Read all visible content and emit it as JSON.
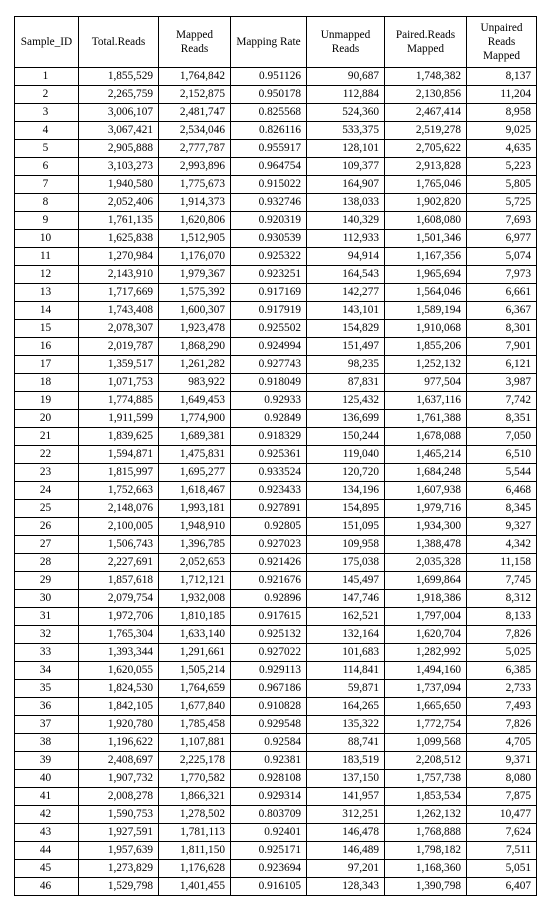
{
  "table": {
    "columns": [
      "Sample_ID",
      "Total.Reads",
      "Mapped Reads",
      "Mapping Rate",
      "Unmapped Reads",
      "Paired.Reads Mapped",
      "Unpaired Reads Mapped"
    ],
    "rows": [
      [
        "1",
        "1,855,529",
        "1,764,842",
        "0.951126",
        "90,687",
        "1,748,382",
        "8,137"
      ],
      [
        "2",
        "2,265,759",
        "2,152,875",
        "0.950178",
        "112,884",
        "2,130,856",
        "11,204"
      ],
      [
        "3",
        "3,006,107",
        "2,481,747",
        "0.825568",
        "524,360",
        "2,467,414",
        "8,958"
      ],
      [
        "4",
        "3,067,421",
        "2,534,046",
        "0.826116",
        "533,375",
        "2,519,278",
        "9,025"
      ],
      [
        "5",
        "2,905,888",
        "2,777,787",
        "0.955917",
        "128,101",
        "2,705,622",
        "4,635"
      ],
      [
        "6",
        "3,103,273",
        "2,993,896",
        "0.964754",
        "109,377",
        "2,913,828",
        "5,223"
      ],
      [
        "7",
        "1,940,580",
        "1,775,673",
        "0.915022",
        "164,907",
        "1,765,046",
        "5,805"
      ],
      [
        "8",
        "2,052,406",
        "1,914,373",
        "0.932746",
        "138,033",
        "1,902,820",
        "5,725"
      ],
      [
        "9",
        "1,761,135",
        "1,620,806",
        "0.920319",
        "140,329",
        "1,608,080",
        "7,693"
      ],
      [
        "10",
        "1,625,838",
        "1,512,905",
        "0.930539",
        "112,933",
        "1,501,346",
        "6,977"
      ],
      [
        "11",
        "1,270,984",
        "1,176,070",
        "0.925322",
        "94,914",
        "1,167,356",
        "5,074"
      ],
      [
        "12",
        "2,143,910",
        "1,979,367",
        "0.923251",
        "164,543",
        "1,965,694",
        "7,973"
      ],
      [
        "13",
        "1,717,669",
        "1,575,392",
        "0.917169",
        "142,277",
        "1,564,046",
        "6,661"
      ],
      [
        "14",
        "1,743,408",
        "1,600,307",
        "0.917919",
        "143,101",
        "1,589,194",
        "6,367"
      ],
      [
        "15",
        "2,078,307",
        "1,923,478",
        "0.925502",
        "154,829",
        "1,910,068",
        "8,301"
      ],
      [
        "16",
        "2,019,787",
        "1,868,290",
        "0.924994",
        "151,497",
        "1,855,206",
        "7,901"
      ],
      [
        "17",
        "1,359,517",
        "1,261,282",
        "0.927743",
        "98,235",
        "1,252,132",
        "6,121"
      ],
      [
        "18",
        "1,071,753",
        "983,922",
        "0.918049",
        "87,831",
        "977,504",
        "3,987"
      ],
      [
        "19",
        "1,774,885",
        "1,649,453",
        "0.92933",
        "125,432",
        "1,637,116",
        "7,742"
      ],
      [
        "20",
        "1,911,599",
        "1,774,900",
        "0.92849",
        "136,699",
        "1,761,388",
        "8,351"
      ],
      [
        "21",
        "1,839,625",
        "1,689,381",
        "0.918329",
        "150,244",
        "1,678,088",
        "7,050"
      ],
      [
        "22",
        "1,594,871",
        "1,475,831",
        "0.925361",
        "119,040",
        "1,465,214",
        "6,510"
      ],
      [
        "23",
        "1,815,997",
        "1,695,277",
        "0.933524",
        "120,720",
        "1,684,248",
        "5,544"
      ],
      [
        "24",
        "1,752,663",
        "1,618,467",
        "0.923433",
        "134,196",
        "1,607,938",
        "6,468"
      ],
      [
        "25",
        "2,148,076",
        "1,993,181",
        "0.927891",
        "154,895",
        "1,979,716",
        "8,345"
      ],
      [
        "26",
        "2,100,005",
        "1,948,910",
        "0.92805",
        "151,095",
        "1,934,300",
        "9,327"
      ],
      [
        "27",
        "1,506,743",
        "1,396,785",
        "0.927023",
        "109,958",
        "1,388,478",
        "4,342"
      ],
      [
        "28",
        "2,227,691",
        "2,052,653",
        "0.921426",
        "175,038",
        "2,035,328",
        "11,158"
      ],
      [
        "29",
        "1,857,618",
        "1,712,121",
        "0.921676",
        "145,497",
        "1,699,864",
        "7,745"
      ],
      [
        "30",
        "2,079,754",
        "1,932,008",
        "0.92896",
        "147,746",
        "1,918,386",
        "8,312"
      ],
      [
        "31",
        "1,972,706",
        "1,810,185",
        "0.917615",
        "162,521",
        "1,797,004",
        "8,133"
      ],
      [
        "32",
        "1,765,304",
        "1,633,140",
        "0.925132",
        "132,164",
        "1,620,704",
        "7,826"
      ],
      [
        "33",
        "1,393,344",
        "1,291,661",
        "0.927022",
        "101,683",
        "1,282,992",
        "5,025"
      ],
      [
        "34",
        "1,620,055",
        "1,505,214",
        "0.929113",
        "114,841",
        "1,494,160",
        "6,385"
      ],
      [
        "35",
        "1,824,530",
        "1,764,659",
        "0.967186",
        "59,871",
        "1,737,094",
        "2,733"
      ],
      [
        "36",
        "1,842,105",
        "1,677,840",
        "0.910828",
        "164,265",
        "1,665,650",
        "7,493"
      ],
      [
        "37",
        "1,920,780",
        "1,785,458",
        "0.929548",
        "135,322",
        "1,772,754",
        "7,826"
      ],
      [
        "38",
        "1,196,622",
        "1,107,881",
        "0.92584",
        "88,741",
        "1,099,568",
        "4,705"
      ],
      [
        "39",
        "2,408,697",
        "2,225,178",
        "0.92381",
        "183,519",
        "2,208,512",
        "9,371"
      ],
      [
        "40",
        "1,907,732",
        "1,770,582",
        "0.928108",
        "137,150",
        "1,757,738",
        "8,080"
      ],
      [
        "41",
        "2,008,278",
        "1,866,321",
        "0.929314",
        "141,957",
        "1,853,534",
        "7,875"
      ],
      [
        "42",
        "1,590,753",
        "1,278,502",
        "0.803709",
        "312,251",
        "1,262,132",
        "10,477"
      ],
      [
        "43",
        "1,927,591",
        "1,781,113",
        "0.92401",
        "146,478",
        "1,768,888",
        "7,624"
      ],
      [
        "44",
        "1,957,639",
        "1,811,150",
        "0.925171",
        "146,489",
        "1,798,182",
        "7,511"
      ],
      [
        "45",
        "1,273,829",
        "1,176,628",
        "0.923694",
        "97,201",
        "1,168,360",
        "5,051"
      ],
      [
        "46",
        "1,529,798",
        "1,401,455",
        "0.916105",
        "128,343",
        "1,390,798",
        "6,407"
      ]
    ]
  }
}
